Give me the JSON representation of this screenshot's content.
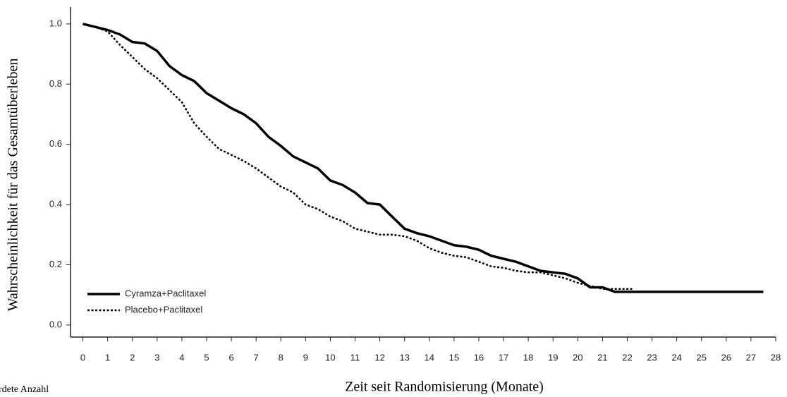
{
  "chart_data": {
    "type": "line",
    "x_label": "Zeit seit Randomisierung (Monate)",
    "y_label": "Wahrscheinlichkeit für das Gesamtüberleben",
    "annotation": "rdete Anzahl",
    "xlim": [
      -0.5,
      28
    ],
    "ylim": [
      -0.04,
      1.056
    ],
    "xticks": [
      0,
      1,
      2,
      3,
      4,
      5,
      6,
      7,
      8,
      9,
      10,
      11,
      12,
      13,
      14,
      15,
      16,
      17,
      18,
      19,
      20,
      21,
      22,
      23,
      24,
      25,
      26,
      27,
      28
    ],
    "yticks": [
      {
        "value": 0,
        "label": "0.0"
      },
      0.2,
      0.4,
      0.6,
      0.8,
      {
        "value": 1,
        "label": "1.0"
      }
    ],
    "legend": "lower left",
    "series": [
      {
        "name": "Cyramza+Paclitaxel",
        "color": "#000000",
        "dash": "solid",
        "x": [
          0,
          0.5,
          1,
          1.5,
          2,
          2.5,
          3,
          3.5,
          4,
          4.5,
          5,
          5.5,
          6,
          6.5,
          7,
          7.5,
          8,
          8.5,
          9,
          9.5,
          10,
          10.5,
          11,
          11.5,
          12,
          12.5,
          13,
          13.5,
          14,
          14.5,
          15,
          15.5,
          16,
          16.5,
          17,
          17.5,
          18,
          18.5,
          19,
          19.5,
          20,
          20.5,
          21,
          21.5,
          27.5
        ],
        "values": [
          1.0,
          0.99,
          0.98,
          0.965,
          0.94,
          0.935,
          0.91,
          0.86,
          0.83,
          0.81,
          0.77,
          0.745,
          0.72,
          0.7,
          0.67,
          0.625,
          0.595,
          0.56,
          0.54,
          0.52,
          0.48,
          0.465,
          0.44,
          0.405,
          0.4,
          0.36,
          0.32,
          0.305,
          0.295,
          0.28,
          0.265,
          0.26,
          0.25,
          0.23,
          0.22,
          0.21,
          0.195,
          0.18,
          0.175,
          0.17,
          0.155,
          0.125,
          0.125,
          0.11,
          0.11
        ]
      },
      {
        "name": "Placebo+Paclitaxel",
        "color": "#000000",
        "dash": "dotted",
        "x": [
          0,
          0.5,
          1,
          1.5,
          2,
          2.5,
          3,
          3.5,
          4,
          4.5,
          5,
          5.5,
          6,
          6.5,
          7,
          7.5,
          8,
          8.5,
          9,
          9.5,
          10,
          10.5,
          11,
          11.5,
          12,
          12.5,
          13,
          13.5,
          14,
          14.5,
          15,
          15.5,
          16,
          16.5,
          17,
          17.5,
          18,
          18.5,
          19,
          19.5,
          20,
          20.5,
          21,
          21.5,
          22.2
        ],
        "values": [
          1.0,
          0.99,
          0.975,
          0.93,
          0.89,
          0.85,
          0.82,
          0.78,
          0.74,
          0.67,
          0.625,
          0.585,
          0.565,
          0.545,
          0.52,
          0.49,
          0.46,
          0.44,
          0.4,
          0.385,
          0.36,
          0.345,
          0.32,
          0.31,
          0.3,
          0.3,
          0.295,
          0.28,
          0.255,
          0.24,
          0.23,
          0.225,
          0.21,
          0.195,
          0.19,
          0.18,
          0.175,
          0.175,
          0.165,
          0.155,
          0.14,
          0.13,
          0.12,
          0.12,
          0.12
        ]
      }
    ]
  }
}
